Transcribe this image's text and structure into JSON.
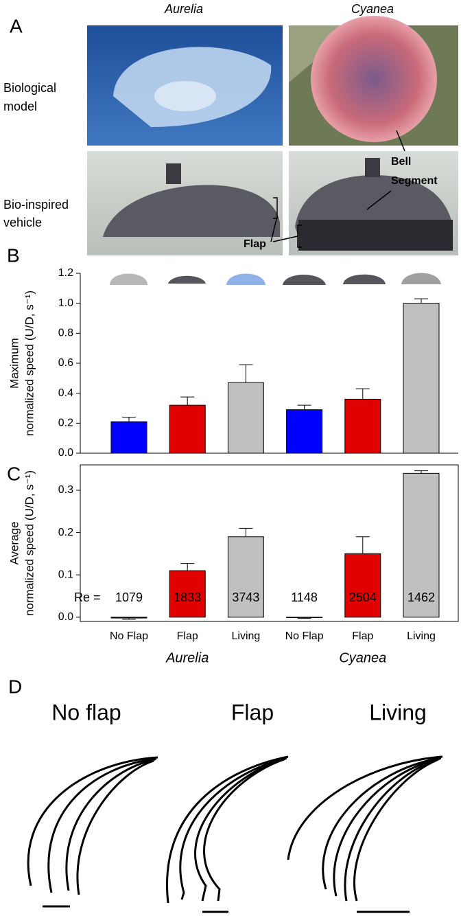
{
  "panel_labels": [
    "A",
    "B",
    "C",
    "D"
  ],
  "panel_a": {
    "columns": [
      "Aurelia",
      "Cyanea"
    ],
    "rows": [
      [
        "Biological",
        "model"
      ],
      [
        "Bio-inspired",
        "vehicle"
      ]
    ],
    "annotations": {
      "bell": [
        "Bell",
        "Segment"
      ],
      "flap": "Flap"
    }
  },
  "chart_data": [
    {
      "type": "bar",
      "ylabel": [
        "Maximum",
        "normalized speed (U/D, s⁻¹)"
      ],
      "values": [
        0.21,
        0.32,
        0.47,
        0.29,
        0.36,
        1.0
      ],
      "errors": [
        0.03,
        0.055,
        0.12,
        0.03,
        0.07,
        0.03
      ],
      "colors": [
        "#0000ff",
        "#e00000",
        "#c0c0c0",
        "#0000ff",
        "#e00000",
        "#c0c0c0"
      ],
      "ylim": [
        0,
        1.2
      ],
      "yticks": [
        {
          "value": 0,
          "label": "0.0"
        },
        0.2,
        0.4,
        0.6,
        0.8,
        {
          "value": 1,
          "label": "1.0"
        },
        1.2
      ]
    },
    {
      "type": "bar",
      "ylabel": [
        "Average",
        "normalized speed (U/D, s⁻¹)"
      ],
      "categories": [
        "No Flap",
        "Flap",
        "Living",
        "No Flap",
        "Flap",
        "Living"
      ],
      "group_labels": [
        "Aurelia",
        "Cyanea"
      ],
      "values": [
        -0.002,
        0.11,
        0.19,
        -0.001,
        0.15,
        0.34
      ],
      "errors": [
        0.003,
        0.017,
        0.02,
        0.002,
        0.04,
        0.006
      ],
      "colors": [
        "#0000ff",
        "#e00000",
        "#c0c0c0",
        "#0000ff",
        "#e00000",
        "#c0c0c0"
      ],
      "re_label": "Re =",
      "re_values": [
        1079,
        1833,
        3743,
        1148,
        2504,
        1462
      ],
      "ylim": [
        -0.01,
        0.36
      ],
      "yticks": [
        {
          "value": 0,
          "label": "0.0"
        },
        0.1,
        0.2,
        0.3
      ]
    }
  ],
  "panel_d": {
    "titles": [
      "No flap",
      "Flap",
      "Living"
    ]
  }
}
